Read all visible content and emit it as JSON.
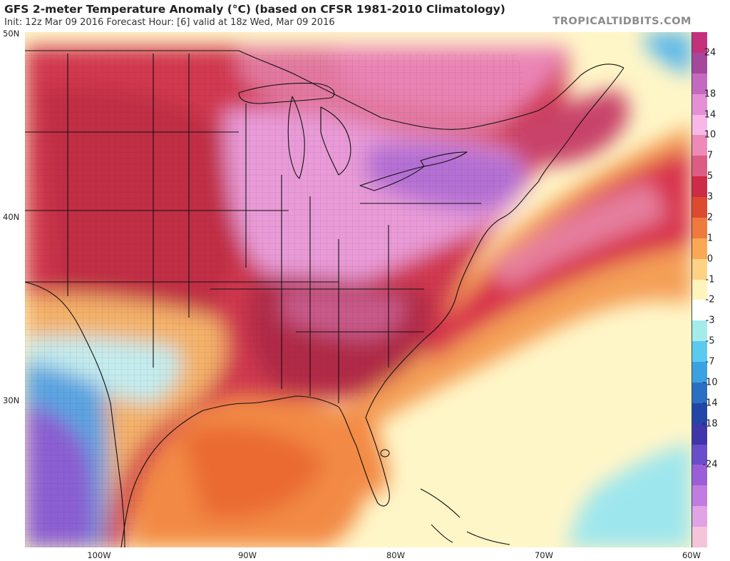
{
  "title": "GFS 2-meter Temperature Anomaly (°C) (based on CFSR 1981-2010 Climatology)",
  "subtitle": "Init: 12z Mar 09 2016   Forecast Hour: [6]   valid at 18z Wed, Mar 09 2016",
  "brand": "TROPICALTIDBITS.COM",
  "map": {
    "lon_range": [
      -105,
      -60
    ],
    "lat_range": [
      22.5,
      50
    ],
    "x_labels": [
      "100W",
      "90W",
      "80W",
      "70W",
      "60W"
    ],
    "y_labels": [
      "50N",
      "40N",
      "30N"
    ]
  },
  "legend": {
    "labels": [
      "24",
      "18",
      "14",
      "10",
      "7",
      "5",
      "3",
      "2",
      "1",
      "0",
      "-1",
      "-2",
      "-3",
      "-5",
      "-7",
      "-10",
      "-14",
      "-18",
      "-24"
    ],
    "colors": [
      "#c5307d",
      "#a5479d",
      "#c36ac0",
      "#e58fd5",
      "#f7b8e8",
      "#ee8ab7",
      "#dc5c83",
      "#cc2c45",
      "#dc4a30",
      "#ef7a3e",
      "#fba855",
      "#fdd285",
      "#fff4bb",
      "#ffffff",
      "#a4ebeb",
      "#5cc9ef",
      "#3aa1e3",
      "#2a6fc4",
      "#2445a8",
      "#3e36aa",
      "#6a4dca",
      "#9a5fd6",
      "#c07ce0",
      "#e0a3e3",
      "#f4c4da"
    ]
  }
}
